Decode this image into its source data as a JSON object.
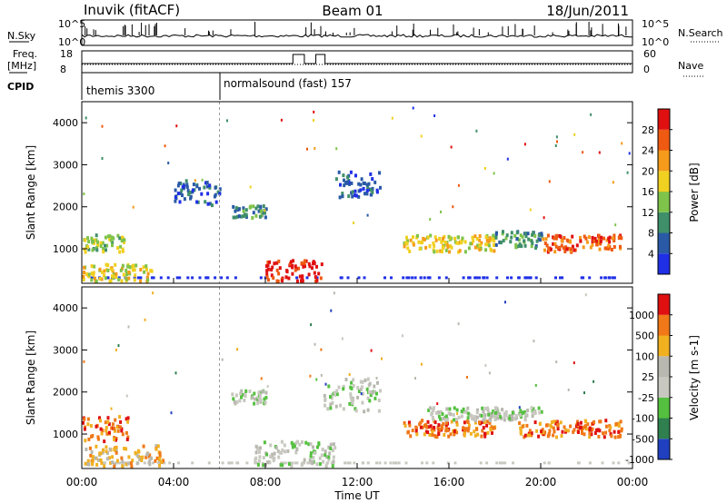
{
  "header": {
    "station": "Inuvik (fitACF)",
    "beam": "Beam 01",
    "date": "18/Jun/2011"
  },
  "strips": {
    "nsky_label": "N.Sky",
    "nsearch_label": "N.Search",
    "nsky_ticks_left": [
      "10^5",
      "10^0"
    ],
    "nsky_ticks_right": [
      "10^5",
      "10^0"
    ],
    "freq_label_1": "Freq.",
    "freq_label_2": "[MHz]",
    "freq_ticks": [
      "18",
      "8"
    ],
    "nave_ticks": [
      "60",
      "0"
    ],
    "nave_label": "Nave",
    "cpid_label": "CPID",
    "cpid_1": "themis 3300",
    "cpid_2": "normalsound (fast) 157"
  },
  "x_ticks": [
    "00:00",
    "04:00",
    "08:00",
    "12:00",
    "16:00",
    "20:00",
    "00:00"
  ],
  "x_label": "Time UT",
  "colors": {
    "power": [
      "#1f2fe6",
      "#2a5aa6",
      "#3f8f6a",
      "#7fc34a",
      "#f0d020",
      "#f59a1a",
      "#ee5a12",
      "#e01010"
    ],
    "velocity": [
      "#2040c0",
      "#2f7f4f",
      "#55c040",
      "#c8c8c0",
      "#b8b8b0",
      "#f0b020",
      "#f07818",
      "#e01010"
    ]
  },
  "chart_data": [
    {
      "type": "heatmap",
      "title": "Power",
      "ylabel": "Slant Range [km]",
      "xlabel": "Time UT",
      "y_ticks": [
        "1000",
        "2000",
        "3000",
        "4000"
      ],
      "ylim": [
        180,
        4500
      ],
      "xlim_hours": [
        0,
        24
      ],
      "colorbar": {
        "label": "Power [dB]",
        "ticks": [
          "4",
          "8",
          "12",
          "16",
          "20",
          "24",
          "28"
        ],
        "range": [
          0,
          30
        ]
      },
      "regions": [
        {
          "t0": 0.0,
          "t1": 2.0,
          "r0": 900,
          "r1": 1300,
          "level": 3
        },
        {
          "t0": 0.0,
          "t1": 3.0,
          "r0": 200,
          "r1": 600,
          "level": 4
        },
        {
          "t0": 8.0,
          "t1": 10.5,
          "r0": 200,
          "r1": 700,
          "level": 7
        },
        {
          "t0": 14.0,
          "t1": 18.0,
          "r0": 900,
          "r1": 1300,
          "level": 4
        },
        {
          "t0": 20.0,
          "t1": 23.5,
          "r0": 900,
          "r1": 1300,
          "level": 6
        },
        {
          "t0": 18.0,
          "t1": 20.0,
          "r0": 1000,
          "r1": 1400,
          "level": 2
        },
        {
          "t0": 4.0,
          "t1": 6.0,
          "r0": 2000,
          "r1": 2600,
          "level": 1
        },
        {
          "t0": 6.5,
          "t1": 8.0,
          "r0": 1700,
          "r1": 2000,
          "level": 2
        },
        {
          "t0": 11.0,
          "t1": 13.0,
          "r0": 2200,
          "r1": 2800,
          "level": 1
        }
      ]
    },
    {
      "type": "heatmap",
      "title": "Velocity",
      "ylabel": "Slant Range [km]",
      "xlabel": "Time UT",
      "y_ticks": [
        "1000",
        "2000",
        "3000",
        "4000"
      ],
      "ylim": [
        180,
        4500
      ],
      "xlim_hours": [
        0,
        24
      ],
      "colorbar": {
        "label": "Velocity [m s-1]",
        "ticks": [
          "1000",
          "500",
          "100",
          "25",
          "-25",
          "-100",
          "-500",
          "-1000"
        ],
        "range": [
          -1000,
          1000
        ]
      },
      "regions": [
        {
          "t0": 0.0,
          "t1": 2.0,
          "r0": 800,
          "r1": 1400,
          "level": 6
        },
        {
          "t0": 0.0,
          "t1": 3.5,
          "r0": 200,
          "r1": 700,
          "level": 5
        },
        {
          "t0": 7.5,
          "t1": 11.0,
          "r0": 200,
          "r1": 800,
          "level": 3
        },
        {
          "t0": 14.0,
          "t1": 18.0,
          "r0": 900,
          "r1": 1300,
          "level": 6
        },
        {
          "t0": 19.0,
          "t1": 23.5,
          "r0": 900,
          "r1": 1300,
          "level": 6
        },
        {
          "t0": 15.0,
          "t1": 20.0,
          "r0": 1300,
          "r1": 1600,
          "level": 3
        },
        {
          "t0": 6.5,
          "t1": 8.0,
          "r0": 1700,
          "r1": 2000,
          "level": 3
        },
        {
          "t0": 10.5,
          "t1": 13.0,
          "r0": 1500,
          "r1": 2300,
          "level": 3
        }
      ]
    }
  ]
}
